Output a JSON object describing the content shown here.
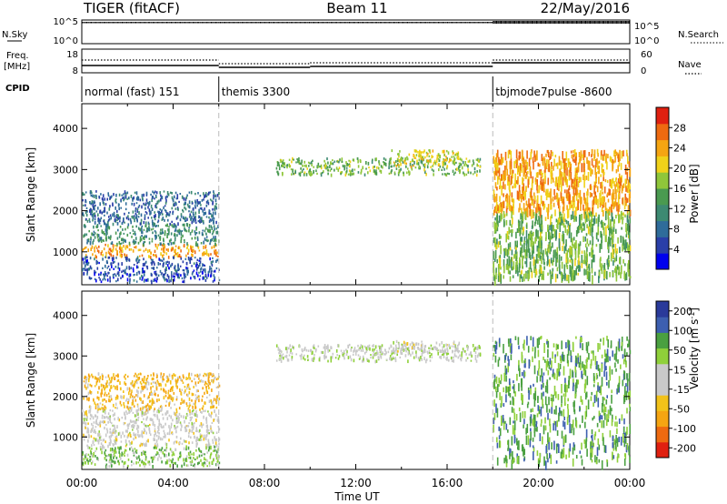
{
  "header": {
    "station": "TIGER (fitACF)",
    "beam": "Beam 11",
    "date": "22/May/2016"
  },
  "strip_labels": {
    "nsky": "N.Sky",
    "nsearch": "N.Search",
    "freq_line1": "Freq.",
    "freq_line2": "[MHz]",
    "nave": "Nave",
    "cpid": "CPID"
  },
  "strip_ticks": {
    "nsky_top": "10^5",
    "nsky_bottom": "10^0",
    "nsearch_top": "10^5",
    "nsearch_bottom": "10^0",
    "freq_top": "18",
    "freq_mid": "8",
    "nave_top": "60",
    "nave_bottom": "0"
  },
  "x_axis": {
    "label": "Time UT",
    "ticks": [
      "00:00",
      "04:00",
      "08:00",
      "12:00",
      "16:00",
      "20:00",
      "00:00"
    ]
  },
  "colors": {
    "power_scale": [
      "#0000ee",
      "#2a3fa8",
      "#2f6c9a",
      "#3d8a72",
      "#4a9a50",
      "#8fc63a",
      "#f0d21a",
      "#f5a512",
      "#ee6a10",
      "#e02010"
    ],
    "velocity_scale": [
      "#e02010",
      "#ee6a10",
      "#f5a512",
      "#f2c21a",
      "#c9c9c9",
      "#c9c9c9",
      "#8fd03a",
      "#4aa040",
      "#3d5fb0",
      "#2a3a9a"
    ]
  },
  "chart_data": [
    {
      "type": "heatmap",
      "panel": "power",
      "ylabel": "Slant Range [km]",
      "ylim": [
        200,
        4600
      ],
      "yticks": [
        1000,
        2000,
        3000,
        4000
      ],
      "xlim_hours": [
        0,
        24
      ],
      "colorbar": {
        "label": "Power [dB]",
        "ticks": [
          28,
          24,
          20,
          16,
          12,
          8,
          4
        ],
        "range": [
          0,
          32
        ]
      },
      "modes": [
        {
          "name": "normal (fast) 151",
          "start_h": 0,
          "end_h": 6
        },
        {
          "name": "themis 3300",
          "start_h": 6,
          "end_h": 18
        },
        {
          "name": "tbjmode7pulse -8600",
          "start_h": 18,
          "end_h": 24
        }
      ],
      "regions": [
        {
          "t0": 0,
          "t1": 6,
          "r0": 900,
          "r1": 1200,
          "value": 24
        },
        {
          "t0": 0,
          "t1": 6,
          "r0": 1200,
          "r1": 1700,
          "value": 12
        },
        {
          "t0": 0,
          "t1": 6,
          "r0": 1700,
          "r1": 2500,
          "value": 8
        },
        {
          "t0": 0,
          "t1": 6,
          "r0": 300,
          "r1": 900,
          "value": 6
        },
        {
          "t0": 8.5,
          "t1": 17.5,
          "r0": 2900,
          "r1": 3300,
          "value": 16
        },
        {
          "t0": 13.5,
          "t1": 16.5,
          "r0": 3100,
          "r1": 3500,
          "value": 20
        },
        {
          "t0": 18,
          "t1": 24,
          "r0": 2000,
          "r1": 3500,
          "value": 24
        },
        {
          "t0": 18,
          "t1": 24,
          "r0": 400,
          "r1": 2000,
          "value": 16
        }
      ]
    },
    {
      "type": "heatmap",
      "panel": "velocity",
      "ylabel": "Slant Range [km]",
      "ylim": [
        200,
        4600
      ],
      "yticks": [
        1000,
        2000,
        3000,
        4000
      ],
      "xlim_hours": [
        0,
        24
      ],
      "colorbar": {
        "label": "Velocity [m s^-1]",
        "ticks": [
          200,
          100,
          50,
          15,
          -15,
          -50,
          -100,
          -200
        ],
        "range": [
          -250,
          250
        ]
      },
      "regions": [
        {
          "t0": 0,
          "t1": 6,
          "r0": 800,
          "r1": 1700,
          "value": 0
        },
        {
          "t0": 0,
          "t1": 6,
          "r0": 1700,
          "r1": 2600,
          "value": -80
        },
        {
          "t0": 0,
          "t1": 6,
          "r0": 300,
          "r1": 800,
          "value": 80
        },
        {
          "t0": 8.5,
          "t1": 17.5,
          "r0": 2900,
          "r1": 3300,
          "value": 30
        },
        {
          "t0": 13.5,
          "t1": 16.5,
          "r0": 3100,
          "r1": 3400,
          "value": 0
        },
        {
          "t0": 18,
          "t1": 24,
          "r0": 400,
          "r1": 3500,
          "value": 120
        }
      ]
    }
  ]
}
